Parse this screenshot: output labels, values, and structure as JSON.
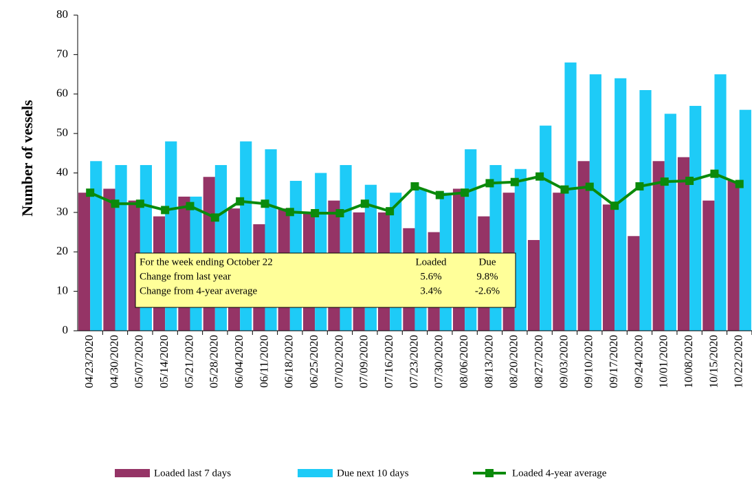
{
  "chart_data": {
    "type": "bar",
    "y_label": "Number of vessels",
    "categories": [
      "04/23/2020",
      "04/30/2020",
      "05/07/2020",
      "05/14/2020",
      "05/21/2020",
      "05/28/2020",
      "06/04/2020",
      "06/11/2020",
      "06/18/2020",
      "06/25/2020",
      "07/02/2020",
      "07/09/2020",
      "07/16/2020",
      "07/23/2020",
      "07/30/2020",
      "08/06/2020",
      "08/13/2020",
      "08/20/2020",
      "08/27/2020",
      "09/03/2020",
      "09/10/2020",
      "09/17/2020",
      "09/24/2020",
      "10/01/2020",
      "10/08/2020",
      "10/15/2020",
      "10/22/2020"
    ],
    "series": [
      {
        "name": "Loaded last 7 days",
        "type": "bar",
        "color": "#953466",
        "values": [
          35,
          36,
          33,
          29,
          34,
          39,
          31,
          27,
          31,
          30,
          33,
          30,
          30,
          26,
          25,
          36,
          29,
          35,
          23,
          35,
          43,
          32,
          24,
          43,
          44,
          33,
          38
        ]
      },
      {
        "name": "Due next 10 days",
        "type": "bar",
        "color": "#1ecbf7",
        "values": [
          43,
          42,
          42,
          48,
          34,
          42,
          48,
          46,
          38,
          40,
          42,
          37,
          35,
          36,
          35,
          46,
          42,
          41,
          52,
          68,
          65,
          64,
          61,
          55,
          57,
          65,
          56
        ]
      },
      {
        "name": "Loaded 4-year average",
        "type": "line",
        "color": "#0b8a0b",
        "values": [
          35,
          32.2,
          32.2,
          30.6,
          31.6,
          28.7,
          32.8,
          32.2,
          30.1,
          29.8,
          29.8,
          32.2,
          30.3,
          36.6,
          34.4,
          35,
          37.4,
          37.7,
          39.1,
          35.8,
          36.5,
          31.7,
          36.6,
          37.8,
          38,
          39.8,
          37.2
        ]
      }
    ],
    "ylim": [
      0,
      80
    ],
    "yticks": [
      0,
      10,
      20,
      30,
      40,
      50,
      60,
      70,
      80
    ],
    "grid": false,
    "table": {
      "header": [
        "For the week ending October 22",
        "Loaded",
        "Due"
      ],
      "rows": [
        [
          "Change from last year",
          "5.6%",
          "9.8%"
        ],
        [
          "Change from 4-year average",
          "3.4%",
          "-2.6%"
        ]
      ]
    }
  }
}
